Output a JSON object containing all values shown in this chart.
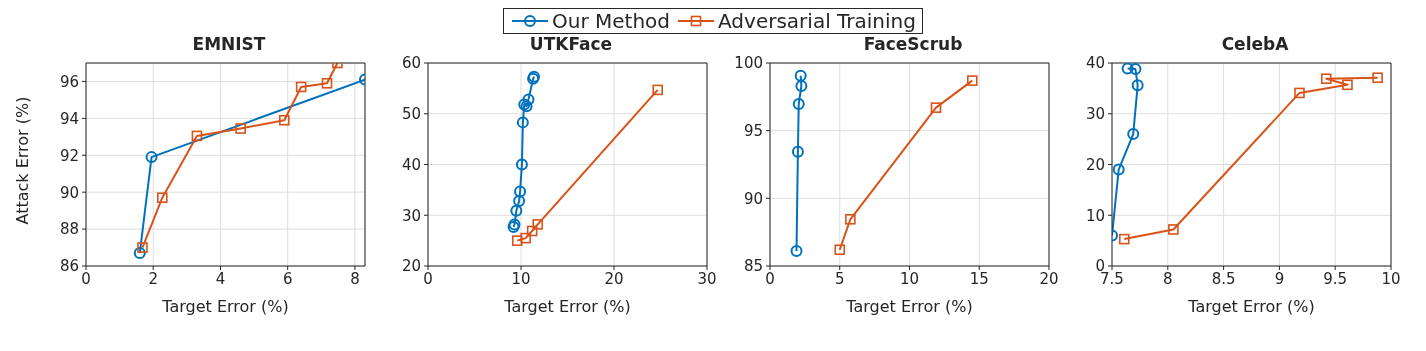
{
  "chart_data": [
    {
      "type": "line",
      "title": "EMNIST",
      "xlabel": "Target Error (%)",
      "ylabel": "Attack Error (%)",
      "xlim": [
        0,
        8.3
      ],
      "xticks": [
        0,
        2,
        4,
        6,
        8
      ],
      "ylim": [
        86,
        97
      ],
      "yticks": [
        86,
        88,
        90,
        92,
        94,
        96
      ],
      "grid": true,
      "legend": "top",
      "line_style": "solid",
      "series": [
        {
          "name": "Our Method",
          "color": "#0072bd",
          "marker": "circle",
          "x": [
            1.6,
            1.95,
            8.3
          ],
          "values": [
            86.7,
            91.9,
            96.1
          ]
        },
        {
          "name": "Adversarial Training",
          "color": "#d95319",
          "marker": "square",
          "x": [
            1.68,
            2.27,
            3.3,
            4.6,
            5.9,
            6.4,
            7.17,
            7.48
          ],
          "values": [
            87.0,
            89.7,
            93.05,
            93.45,
            93.9,
            95.7,
            95.9,
            97.0
          ]
        }
      ]
    },
    {
      "type": "line",
      "title": "UTKFace",
      "xlabel": "Target Error (%)",
      "xlim": [
        0,
        30
      ],
      "xticks": [
        0,
        10,
        20,
        30
      ],
      "ylim": [
        20,
        60
      ],
      "yticks": [
        20,
        30,
        40,
        50,
        60
      ],
      "grid": true,
      "line_style": "solid",
      "series": [
        {
          "color": "#0072bd",
          "marker": "circle",
          "x": [
            9.2,
            9.3,
            9.5,
            9.8,
            9.9,
            10.1,
            10.2,
            10.35,
            10.6,
            10.8,
            11.3,
            11.4
          ],
          "values": [
            27.7,
            28.2,
            30.9,
            32.8,
            34.7,
            40,
            48.3,
            51.8,
            51.5,
            52.8,
            56.9,
            57.3
          ]
        },
        {
          "color": "#d95319",
          "marker": "square",
          "x": [
            9.6,
            10.5,
            11.2,
            11.8,
            24.7
          ],
          "values": [
            25.0,
            25.5,
            26.9,
            28.2,
            54.7
          ]
        }
      ]
    },
    {
      "type": "line",
      "title": "FaceScrub",
      "xlabel": "Target Error (%)",
      "xlim": [
        0,
        20
      ],
      "xticks": [
        0,
        5,
        10,
        15,
        20
      ],
      "ylim": [
        85,
        100
      ],
      "yticks": [
        85,
        90,
        95,
        100
      ],
      "grid": true,
      "line_style": "solid",
      "series": [
        {
          "color": "#0072bd",
          "marker": "circle",
          "x": [
            1.9,
            2.0,
            2.06,
            2.25,
            2.2
          ],
          "values": [
            86.1,
            93.45,
            96.97,
            98.3,
            99.06
          ]
        },
        {
          "color": "#d95319",
          "marker": "square",
          "x": [
            5.0,
            5.76,
            11.9,
            14.5
          ],
          "values": [
            86.2,
            88.45,
            96.7,
            98.7
          ]
        }
      ]
    },
    {
      "type": "line",
      "title": "CelebA",
      "xlabel": "Target Error (%)",
      "xlim": [
        7.5,
        10
      ],
      "xticks": [
        7.5,
        8,
        8.5,
        9,
        9.5,
        10
      ],
      "ylim": [
        0,
        40
      ],
      "yticks": [
        0,
        10,
        20,
        30,
        40
      ],
      "grid": true,
      "line_style": "solid",
      "series": [
        {
          "color": "#0072bd",
          "marker": "circle",
          "x": [
            7.5,
            7.56,
            7.69,
            7.73,
            7.71,
            7.64
          ],
          "values": [
            6.0,
            19.0,
            26.0,
            35.6,
            38.8,
            38.9
          ]
        },
        {
          "color": "#d95319",
          "marker": "square",
          "x": [
            7.61,
            8.05,
            9.18,
            9.61,
            9.42,
            9.88
          ],
          "values": [
            5.3,
            7.2,
            34.1,
            35.7,
            36.9,
            37.1
          ]
        }
      ]
    }
  ]
}
